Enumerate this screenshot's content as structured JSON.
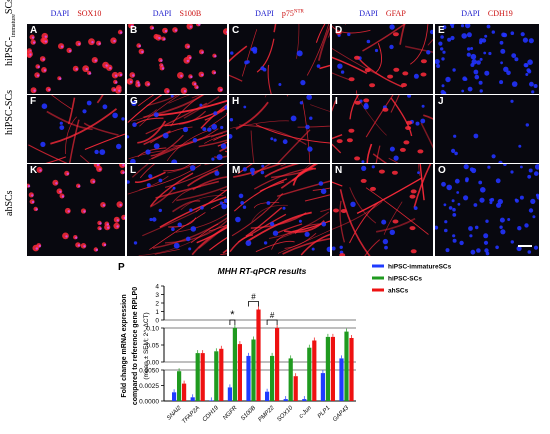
{
  "figure": {
    "col_headers": [
      {
        "dapi": "DAPI",
        "marker": "SOX10",
        "sup": ""
      },
      {
        "dapi": "DAPI",
        "marker": "S100B",
        "sup": ""
      },
      {
        "dapi": "DAPI",
        "marker": "p75",
        "sup": "NTR"
      },
      {
        "dapi": "DAPI",
        "marker": "GFAP",
        "sup": ""
      },
      {
        "dapi": "DAPI",
        "marker": "CDH19",
        "sup": ""
      }
    ],
    "row_labels": [
      {
        "main": "hiPSC-",
        "sub": "immature",
        "tail": "SCs"
      },
      {
        "main": "hiPSC-SCs",
        "sub": "",
        "tail": ""
      },
      {
        "main": "ahSCs",
        "sub": "",
        "tail": ""
      }
    ],
    "panels": [
      "A",
      "B",
      "C",
      "D",
      "E",
      "F",
      "G",
      "H",
      "I",
      "J",
      "K",
      "L",
      "M",
      "N",
      "O"
    ],
    "panel_styles": [
      "dots",
      "dots",
      "fibers",
      "mixed",
      "blue",
      "fibers",
      "dense",
      "fibers",
      "mixed",
      "sparse",
      "dots",
      "dense",
      "dense",
      "mixed",
      "blue"
    ],
    "colors": {
      "dapi": "#2233ff",
      "marker": "#ff2a3a",
      "bg": "#08080f"
    }
  },
  "chart": {
    "panel_letter": "P",
    "title": "MHH RT-qPCR results",
    "ylabel_lines": [
      "Fold change mRNA expression",
      "compared to reference gene RPLP0",
      "(mean ± SEM; 2^-ΔCT)"
    ],
    "legend": [
      "hiPSC-immatureSCs",
      "hiPSC-SCs",
      "ahSCs"
    ],
    "significance": [
      "*",
      "#",
      "#"
    ]
  },
  "chart_data": {
    "type": "bar",
    "title": "MHH RT-qPCR results",
    "ylabel": "Fold change mRNA expression compared to reference gene RPLP0 (mean ± SEM; 2^-ΔCT)",
    "categories": [
      "SNAI2",
      "TFAP2A",
      "CDH19",
      "NGFR",
      "S100B",
      "PMP22",
      "SOX10",
      "c-Jun",
      "PLP1",
      "GAP43"
    ],
    "series": [
      {
        "name": "hiPSC-immatureSCs",
        "color": "#1f3bff",
        "values": [
          0.0014,
          0.0006,
          0.0001,
          0.0022,
          0.022,
          0.0015,
          0.0003,
          0.0003,
          0.0045,
          0.015
        ]
      },
      {
        "name": "hiPSC-SCs",
        "color": "#1f9a1f",
        "values": [
          0.0048,
          0.03,
          0.035,
          0.1,
          0.068,
          0.022,
          0.015,
          0.045,
          0.075,
          0.09
        ]
      },
      {
        "name": "ahSCs",
        "color": "#ee1111",
        "values": [
          0.0028,
          0.03,
          0.042,
          0.055,
          1.3,
          0.1,
          0.004,
          0.065,
          0.075,
          0.072
        ]
      }
    ],
    "y_axis_segments": [
      {
        "range": [
          0,
          0.005
        ],
        "ticks": [
          "0.0000",
          "0.0025",
          "0.0050"
        ]
      },
      {
        "range": [
          0,
          0.1
        ],
        "ticks": [
          "0.00",
          "0.05",
          "0.10"
        ]
      },
      {
        "range": [
          0,
          4
        ],
        "ticks": [
          "0",
          "1",
          "2",
          "3",
          "4"
        ]
      }
    ],
    "annotations": [
      {
        "text": "*",
        "between": [
          "NGFR:hiPSC-immatureSCs",
          "NGFR:hiPSC-SCs"
        ]
      },
      {
        "text": "#",
        "between": [
          "S100B:hiPSC-immatureSCs",
          "S100B:ahSCs"
        ]
      },
      {
        "text": "#",
        "between": [
          "PMP22:hiPSC-immatureSCs",
          "PMP22:ahSCs"
        ]
      }
    ],
    "legend_position": "top-right",
    "grid": false
  }
}
